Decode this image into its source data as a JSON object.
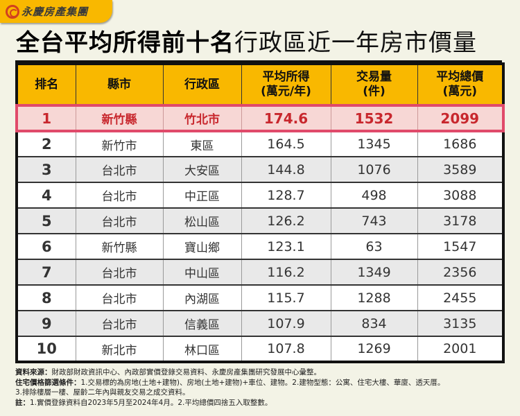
{
  "brand": {
    "logo_icon": "yungching-logo-icon",
    "name": "永慶房產集團"
  },
  "title": {
    "bold_part": "全台平均所得前十名",
    "light_part": "行政區近一年房市價量"
  },
  "table": {
    "headers": [
      {
        "line1": "排名",
        "line2": ""
      },
      {
        "line1": "縣市",
        "line2": ""
      },
      {
        "line1": "行政區",
        "line2": ""
      },
      {
        "line1": "平均所得",
        "line2": "(萬元/年)"
      },
      {
        "line1": "交易量",
        "line2": "(件)"
      },
      {
        "line1": "平均總價",
        "line2": "(萬元)"
      }
    ],
    "rows": [
      {
        "rank": "1",
        "county": "新竹縣",
        "district": "竹北市",
        "income": "174.6",
        "volume": "1532",
        "avg_price": "2099"
      },
      {
        "rank": "2",
        "county": "新竹市",
        "district": "東區",
        "income": "164.5",
        "volume": "1345",
        "avg_price": "1686"
      },
      {
        "rank": "3",
        "county": "台北市",
        "district": "大安區",
        "income": "144.8",
        "volume": "1076",
        "avg_price": "3589"
      },
      {
        "rank": "4",
        "county": "台北市",
        "district": "中正區",
        "income": "128.7",
        "volume": "498",
        "avg_price": "3088"
      },
      {
        "rank": "5",
        "county": "台北市",
        "district": "松山區",
        "income": "126.2",
        "volume": "743",
        "avg_price": "3178"
      },
      {
        "rank": "6",
        "county": "新竹縣",
        "district": "寶山鄉",
        "income": "123.1",
        "volume": "63",
        "avg_price": "1547"
      },
      {
        "rank": "7",
        "county": "台北市",
        "district": "中山區",
        "income": "116.2",
        "volume": "1349",
        "avg_price": "2356"
      },
      {
        "rank": "8",
        "county": "台北市",
        "district": "內湖區",
        "income": "115.7",
        "volume": "1288",
        "avg_price": "2455"
      },
      {
        "rank": "9",
        "county": "台北市",
        "district": "信義區",
        "income": "107.9",
        "volume": "834",
        "avg_price": "3135"
      },
      {
        "rank": "10",
        "county": "新北市",
        "district": "林口區",
        "income": "107.8",
        "volume": "1269",
        "avg_price": "2001"
      }
    ],
    "highlight_row": 1
  },
  "notes": {
    "source_label": "資料來源：",
    "source_text": "財政部財政資訊中心、內政部實價登錄交易資料、永慶房產集團研究發展中心彙整。",
    "filter_label": "住宅價格篩選條件：",
    "filter_text": "1.交易標的為房地(土地+建物)、房地(土地+建物)+車位、建物。2.建物型態：公寓、住宅大樓、華廈、透天厝。",
    "filter_text2": "3.排除樓層一樓、屋齡二年內與親友交易之成交資料。",
    "note_label": "註：",
    "note_text": "1.實價登錄資料自2023年5月至2024年4月。2.平均總價四捨五入取整數。"
  },
  "colors": {
    "background": "#f3f3e6",
    "header_yellow": "#f9b800",
    "highlight_border": "#e04a6a",
    "highlight_fill": "#f7d7d5",
    "highlight_text": "#c8272d",
    "stripe": "#e9e9e9"
  }
}
